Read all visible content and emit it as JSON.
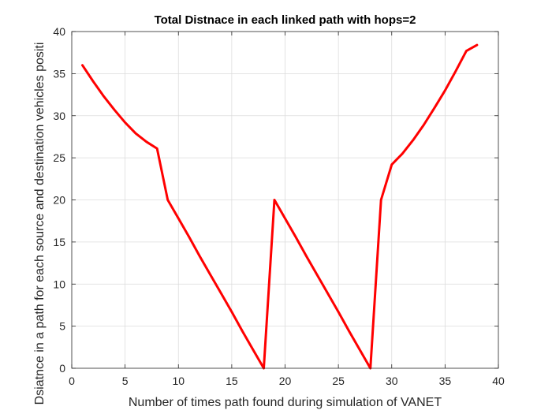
{
  "chart_data": {
    "type": "line",
    "title": "Total Distnace in each linked path with hops=2",
    "xlabel": "Number of times path found during simulation of VANET",
    "ylabel": "Dsiatnce in a path for each source and destination vehicles positi",
    "xlim": [
      0,
      40
    ],
    "ylim": [
      0,
      40
    ],
    "xticks": [
      0,
      5,
      10,
      15,
      20,
      25,
      30,
      35,
      40
    ],
    "yticks": [
      0,
      5,
      10,
      15,
      20,
      25,
      30,
      35,
      40
    ],
    "grid": true,
    "series": [
      {
        "color": "#ff0000",
        "x": [
          1,
          2,
          3,
          4,
          5,
          6,
          7,
          8,
          9,
          10,
          11,
          12,
          13,
          14,
          15,
          16,
          17,
          18,
          19,
          20,
          21,
          22,
          23,
          24,
          25,
          26,
          27,
          28,
          29,
          30,
          31,
          32,
          33,
          34,
          35,
          36,
          37,
          38
        ],
        "y": [
          36,
          34.1,
          32.3,
          30.7,
          29.2,
          27.9,
          26.9,
          26.1,
          20,
          17.8,
          15.6,
          13.3,
          11.1,
          8.9,
          6.7,
          4.4,
          2.2,
          0,
          20,
          17.8,
          15.6,
          13.3,
          11.1,
          8.9,
          6.7,
          4.4,
          2.2,
          0,
          20,
          24.2,
          25.5,
          27.1,
          28.9,
          30.9,
          33.0,
          35.3,
          37.7,
          38.4
        ]
      }
    ]
  }
}
